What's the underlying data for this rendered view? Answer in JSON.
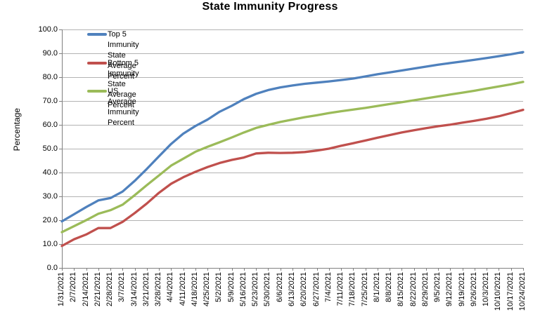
{
  "chart_data": {
    "type": "line",
    "title": "State Immunity Progress",
    "xlabel": "",
    "ylabel": "Percentage",
    "ylim": [
      0,
      100
    ],
    "y_tick_labels": [
      "0.0",
      "10.0",
      "20.0",
      "30.0",
      "40.0",
      "50.0",
      "60.0",
      "70.0",
      "80.0",
      "90.0",
      "100.0"
    ],
    "grid": true,
    "legend_position": "inside-top-left",
    "categories": [
      "1/31/2021",
      "2/7/2021",
      "2/14/2021",
      "2/21/2021",
      "2/28/2021",
      "3/7/2021",
      "3/14/2021",
      "3/21/2021",
      "3/28/2021",
      "4/4/2021",
      "4/11/2021",
      "4/18/2021",
      "4/25/2021",
      "5/2/2021",
      "5/9/2021",
      "5/16/2021",
      "5/23/2021",
      "5/30/2021",
      "6/6/2021",
      "6/13/2021",
      "6/20/2021",
      "6/27/2021",
      "7/4/2021",
      "7/11/2021",
      "7/18/2021",
      "7/25/2021",
      "8/1/2021",
      "8/8/2021",
      "8/15/2021",
      "8/22/2021",
      "8/29/2021",
      "9/5/2021",
      "9/12/2021",
      "9/19/2021",
      "9/26/2021",
      "10/3/2021",
      "10/10/2021",
      "10/17/2021",
      "10/24/2021"
    ],
    "series": [
      {
        "id": "top5",
        "name": "Top 5 Immunity State Average Percent",
        "color": "#4F81BD",
        "values": [
          19.5,
          22.5,
          25.5,
          28.3,
          29.3,
          32.0,
          36.5,
          41.5,
          46.8,
          52.0,
          56.3,
          59.5,
          62.2,
          65.5,
          68.0,
          70.8,
          73.0,
          74.6,
          75.7,
          76.5,
          77.2,
          77.7,
          78.2,
          78.8,
          79.4,
          80.3,
          81.2,
          82.0,
          82.8,
          83.6,
          84.4,
          85.2,
          85.9,
          86.6,
          87.3,
          88.0,
          88.8,
          89.6,
          90.5
        ]
      },
      {
        "id": "bottom5",
        "name": "Bottom 5 Immunity State Average Percent",
        "color": "#C0504D",
        "values": [
          9.2,
          12.0,
          14.0,
          16.7,
          16.7,
          19.3,
          23.0,
          27.0,
          31.5,
          35.3,
          38.0,
          40.3,
          42.3,
          44.0,
          45.3,
          46.3,
          48.0,
          48.3,
          48.2,
          48.3,
          48.6,
          49.2,
          50.0,
          51.2,
          52.3,
          53.4,
          54.6,
          55.7,
          56.8,
          57.7,
          58.6,
          59.4,
          60.1,
          60.9,
          61.7,
          62.6,
          63.6,
          64.9,
          66.3
        ]
      },
      {
        "id": "us_average",
        "name": "US Average Immunity Percent",
        "color": "#9BBB59",
        "values": [
          15.0,
          17.5,
          20.0,
          22.7,
          24.2,
          26.5,
          30.5,
          34.7,
          38.8,
          42.9,
          45.8,
          48.7,
          50.8,
          52.7,
          54.7,
          56.8,
          58.7,
          60.0,
          61.2,
          62.2,
          63.2,
          64.0,
          64.9,
          65.7,
          66.4,
          67.1,
          67.9,
          68.7,
          69.5,
          70.3,
          71.1,
          71.9,
          72.7,
          73.5,
          74.3,
          75.2,
          76.1,
          77.0,
          78.0
        ]
      }
    ],
    "axis_color": "#808080",
    "gridline_color": "#B3B3B3"
  }
}
